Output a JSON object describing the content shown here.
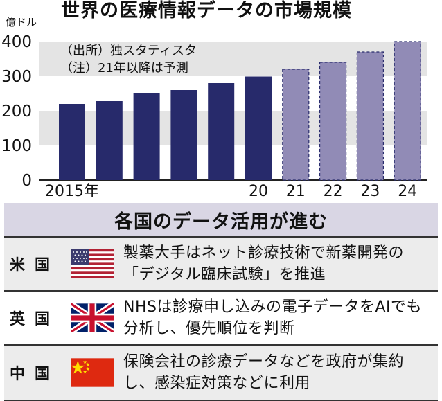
{
  "title": "世界の医療情報データの市場規模",
  "unit": "億ドル",
  "source_note": "（出所）独スタティスタ",
  "forecast_note": "（注）21年以降は予測",
  "chart_data": {
    "type": "bar",
    "categories": [
      "2015年",
      "",
      "",
      "",
      "",
      "20",
      "21",
      "22",
      "23",
      "24"
    ],
    "values": [
      220,
      228,
      250,
      260,
      280,
      299,
      320,
      340,
      370,
      400
    ],
    "forecast_from_index": 6,
    "ylim": [
      0,
      400
    ],
    "yticks": [
      0,
      100,
      200,
      300,
      400
    ],
    "ylabel": "億ドル",
    "colors": {
      "actual": "#272a6b",
      "forecast": "#918bb6",
      "band": "#e4e4e4"
    }
  },
  "section": {
    "title": "各国のデータ活用が進む",
    "rows": [
      {
        "country": "米国",
        "flag": "us-flag",
        "text": "製薬大手はネット診療技術で新薬開発の「デジタル臨床試験」を推進"
      },
      {
        "country": "英国",
        "flag": "uk-flag",
        "text": "NHSは診療申し込みの電子データをAIでも分析し、優先順位を判断"
      },
      {
        "country": "中国",
        "flag": "cn-flag",
        "text": "保険会社の診療データなどを政府が集約し、感染症対策などに利用"
      }
    ]
  }
}
